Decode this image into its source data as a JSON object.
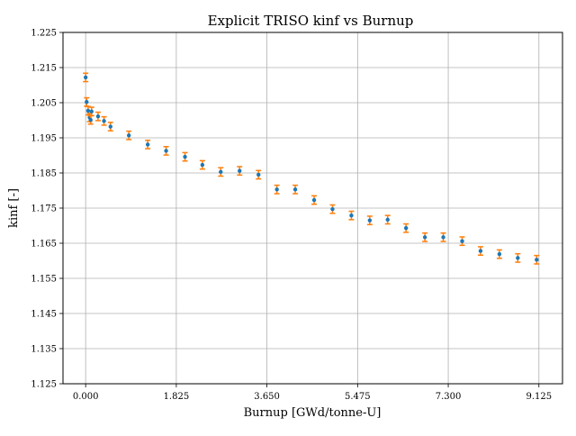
{
  "chart_data": {
    "type": "scatter",
    "title": "Explicit TRISO kinf vs Burnup",
    "xlabel": "Burnup [GWd/tonne-U]",
    "ylabel": "kinf [-]",
    "xlim": [
      -0.456,
      9.6
    ],
    "ylim": [
      1.125,
      1.225
    ],
    "x_ticks": [
      "0.000",
      "1.825",
      "3.650",
      "5.475",
      "7.300",
      "9.125"
    ],
    "x_tick_values": [
      0.0,
      1.825,
      3.65,
      5.475,
      7.3,
      9.125
    ],
    "y_ticks": [
      "1.125",
      "1.135",
      "1.145",
      "1.155",
      "1.165",
      "1.175",
      "1.185",
      "1.195",
      "1.205",
      "1.215",
      "1.225"
    ],
    "y_tick_values": [
      1.125,
      1.135,
      1.145,
      1.155,
      1.165,
      1.175,
      1.185,
      1.195,
      1.205,
      1.215,
      1.225
    ],
    "grid": true,
    "marker_color": "#1f77b4",
    "errorbar_color": "#ff7f0e",
    "series": [
      {
        "x": [
          0.0,
          0.02,
          0.05,
          0.08,
          0.1,
          0.12,
          0.25,
          0.37,
          0.5,
          0.87,
          1.25,
          1.62,
          2.0,
          2.35,
          2.72,
          3.1,
          3.48,
          3.85,
          4.22,
          4.6,
          4.97,
          5.35,
          5.72,
          6.08,
          6.45,
          6.83,
          7.2,
          7.58,
          7.95,
          8.33,
          8.7,
          9.08
        ],
        "y": [
          1.2122,
          1.2052,
          1.2027,
          1.2008,
          1.2001,
          1.2025,
          1.2011,
          1.1998,
          1.1982,
          1.1957,
          1.1931,
          1.1913,
          1.1896,
          1.1873,
          1.1853,
          1.1856,
          1.1845,
          1.1803,
          1.1803,
          1.1773,
          1.1747,
          1.1729,
          1.1715,
          1.1717,
          1.1693,
          1.1667,
          1.1667,
          1.1656,
          1.1628,
          1.1619,
          1.1608,
          1.1603
        ],
        "yerr": [
          0.0012,
          0.0012,
          0.0012,
          0.0012,
          0.0012,
          0.0012,
          0.0012,
          0.0012,
          0.0012,
          0.0012,
          0.0012,
          0.0012,
          0.0012,
          0.0012,
          0.0012,
          0.0012,
          0.0012,
          0.0012,
          0.0012,
          0.0012,
          0.0012,
          0.0012,
          0.0012,
          0.0012,
          0.0012,
          0.0012,
          0.0012,
          0.0012,
          0.0012,
          0.0012,
          0.0012,
          0.0012
        ]
      }
    ]
  }
}
